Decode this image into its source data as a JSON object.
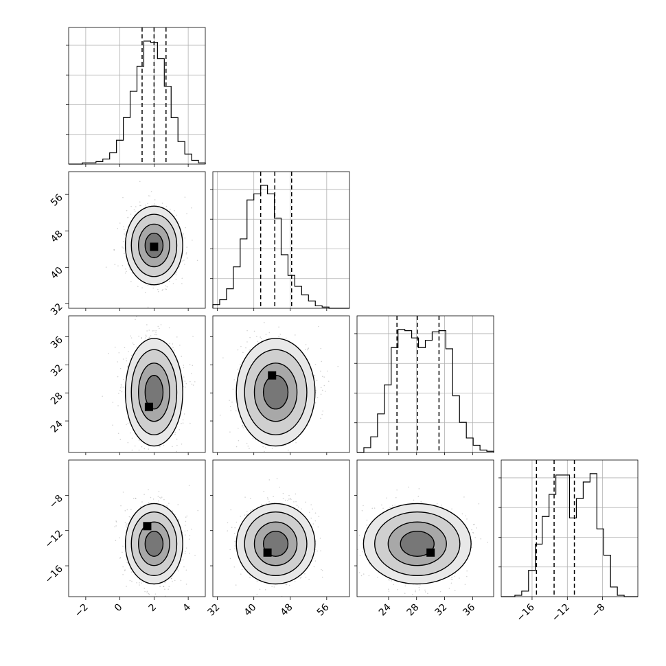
{
  "chart_data": {
    "type": "corner",
    "grid": true,
    "dimensions": [
      {
        "range": [
          -3,
          5
        ],
        "ticks": [
          -2,
          0,
          2,
          4
        ],
        "quantiles": [
          1.3,
          2.0,
          2.7
        ],
        "center": 2.0,
        "sigma": 0.7
      },
      {
        "range": [
          31,
          61
        ],
        "ticks": [
          32,
          40,
          48,
          56
        ],
        "quantiles": [
          41.5,
          44.6,
          48.3
        ],
        "center": 44.8,
        "sigma": 3.6
      },
      {
        "range": [
          19.5,
          39
        ],
        "ticks": [
          24,
          28,
          32,
          36
        ],
        "quantiles": [
          25.2,
          28.1,
          31.2
        ],
        "center": 28.1,
        "sigma": 3.2
      },
      {
        "range": [
          -19.5,
          -4
        ],
        "ticks": [
          -16,
          -12,
          -8
        ],
        "quantiles": [
          -15.5,
          -13.5,
          -11.2
        ],
        "center": -13.5,
        "sigma": 1.9
      }
    ],
    "histograms": [
      [
        0,
        0,
        1,
        1,
        2,
        4,
        9,
        19,
        37,
        58,
        78,
        98,
        97,
        84,
        62,
        37,
        18,
        8,
        3,
        1
      ],
      [
        3,
        7,
        16,
        34,
        57,
        89,
        94,
        101,
        94,
        74,
        44,
        27,
        18,
        11,
        6,
        2,
        1,
        0,
        0,
        0
      ],
      [
        0,
        4,
        13,
        32,
        56,
        87,
        102,
        101,
        95,
        87,
        93,
        100,
        101,
        86,
        47,
        25,
        12,
        6,
        2,
        1
      ],
      [
        0,
        0,
        1,
        4,
        19,
        38,
        58,
        74,
        88,
        88,
        57,
        71,
        83,
        89,
        49,
        30,
        7,
        1,
        0,
        0
      ]
    ],
    "panels": [
      {
        "x": 0,
        "y": 1,
        "peak_bin": [
          2.0,
          44.5
        ]
      },
      {
        "x": 0,
        "y": 2,
        "peak_bin": [
          1.7,
          26.0
        ]
      },
      {
        "x": 1,
        "y": 2,
        "peak_bin": [
          44.0,
          30.5
        ]
      },
      {
        "x": 0,
        "y": 3,
        "peak_bin": [
          1.6,
          -11.5
        ]
      },
      {
        "x": 1,
        "y": 3,
        "peak_bin": [
          43.0,
          -14.5
        ]
      },
      {
        "x": 2,
        "y": 3,
        "peak_bin": [
          30.0,
          -14.5
        ]
      }
    ]
  }
}
